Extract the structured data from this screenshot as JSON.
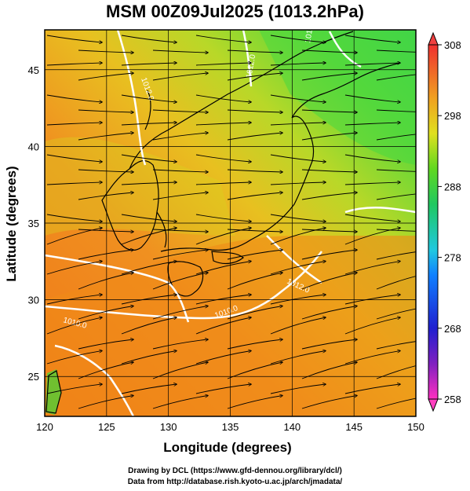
{
  "title": "MSM 00Z09Jul2025 (1013.2hPa)",
  "x_axis": {
    "label": "Longitude (degrees)",
    "ticks": [
      "120",
      "125",
      "130",
      "135",
      "140",
      "145",
      "150"
    ]
  },
  "y_axis": {
    "label": "Latitude  (degrees)",
    "ticks": [
      "25",
      "30",
      "35",
      "40",
      "45"
    ]
  },
  "colorbar": {
    "ticks": [
      "308",
      "298",
      "288",
      "278",
      "268",
      "258"
    ],
    "range": [
      258,
      308
    ]
  },
  "contour_labels": [
    "1010.0",
    "1012.0",
    "1010.0",
    "1012.0",
    "1016.0",
    "1012.0"
  ],
  "credits": [
    "Drawing by DCL (https://www.gfd-dennou.org/library/dcl/)",
    "Data from http://database.rish.kyoto-u.ac.jp/arch/jmadata/"
  ],
  "colors": {
    "warm": "#f08a18",
    "mid": "#e0d020",
    "cool": "#40d040",
    "land_outline": "#000000",
    "isobar": "#ffffff"
  }
}
